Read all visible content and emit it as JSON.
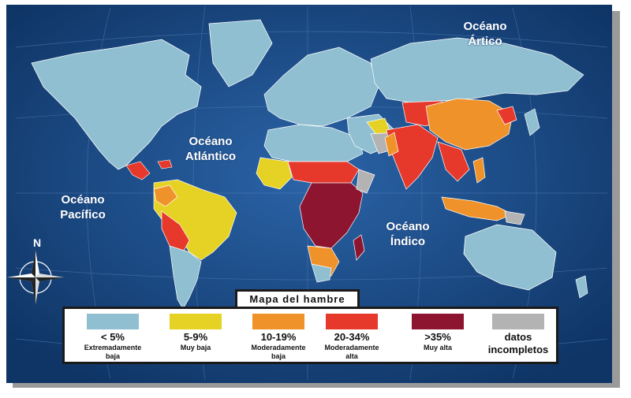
{
  "title": "Mapa del hambre",
  "oceans": {
    "arctic": "Océano\nÁrtico",
    "atlantic": "Océano\nAtlántico",
    "pacific": "Océano\nPacífico",
    "indian": "Océano\nÍndico"
  },
  "compass": {
    "north": "N"
  },
  "legend": [
    {
      "range": "< 5%",
      "desc": "Extremadamente\nbaja",
      "color": "#8fbfd1"
    },
    {
      "range": "5-9%",
      "desc": "Muy baja",
      "color": "#e6d224"
    },
    {
      "range": "10-19%",
      "desc": "Moderadamente\nbaja",
      "color": "#f0922a"
    },
    {
      "range": "20-34%",
      "desc": "Moderadamente\nalta",
      "color": "#e6392c"
    },
    {
      "range": ">35%",
      "desc": "Muy alta",
      "color": "#8e1530"
    },
    {
      "range": "",
      "desc": "datos\nincompletos",
      "color": "#b3b3b3"
    }
  ],
  "colors": {
    "ocean": "#1e4f8f",
    "ocean_dark": "#123a6d"
  }
}
